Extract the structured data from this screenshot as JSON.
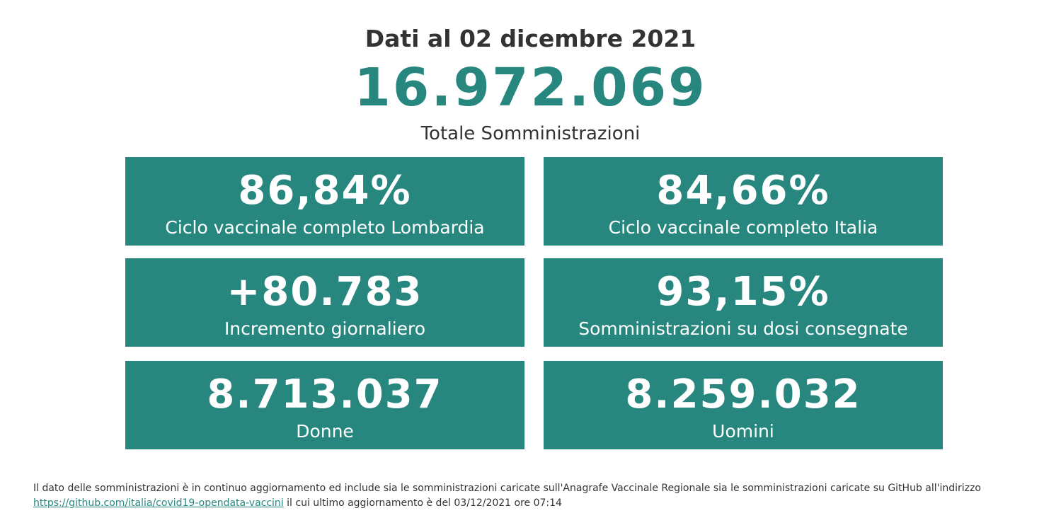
{
  "header": {
    "date_title": "Dati al 02 dicembre 2021",
    "total_value": "16.972.069",
    "total_label": "Totale Somministrazioni"
  },
  "cards": [
    {
      "value": "86,84%",
      "label": "Ciclo vaccinale completo Lombardia"
    },
    {
      "value": "84,66%",
      "label": "Ciclo vaccinale completo Italia"
    },
    {
      "value": "+80.783",
      "label": "Incremento giornaliero"
    },
    {
      "value": "93,15%",
      "label": "Somministrazioni su dosi consegnate"
    },
    {
      "value": "8.713.037",
      "label": "Donne"
    },
    {
      "value": "8.259.032",
      "label": "Uomini"
    }
  ],
  "footer": {
    "text_part1": "Il dato delle somministrazioni è in continuo aggiornamento ed include sia le somministrazioni caricate sull'Anagrafe Vaccinale Regionale sia le somministrazioni caricate su GitHub all'indirizzo",
    "link": "https://github.com/italia/covid19-opendata-vaccini",
    "text_part2": "il cui ultimo aggiornamento è del 03/12/2021 ore 07:14"
  },
  "colors": {
    "accent": "#27877f",
    "text": "#333333",
    "background": "#ffffff"
  }
}
